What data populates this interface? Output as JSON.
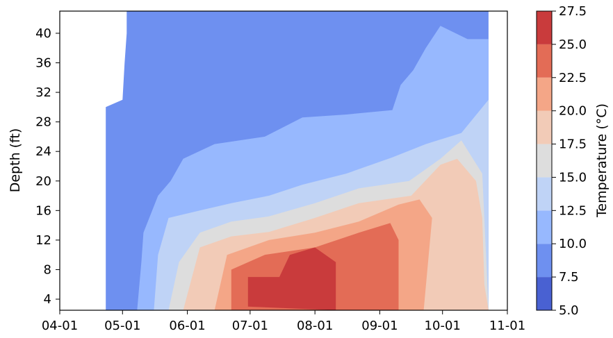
{
  "chart_data": {
    "type": "contourf",
    "title": "",
    "xlabel": "",
    "ylabel": "Depth (ft)",
    "x_ticks": [
      "04-01",
      "05-01",
      "06-01",
      "07-01",
      "08-01",
      "09-01",
      "10-01",
      "11-01"
    ],
    "y_ticks": [
      4,
      8,
      12,
      16,
      20,
      24,
      28,
      32,
      36,
      40
    ],
    "xlim": [
      "04-01",
      "11-01"
    ],
    "ylim": [
      43,
      2.5
    ],
    "y_inverted": true,
    "data_extent": {
      "x_start": "04-23",
      "x_end": "10-23",
      "depth_top": 2.5,
      "depth_bottom": 43
    },
    "colorbar": {
      "label": "Temperature (°C)",
      "levels": [
        5.0,
        7.5,
        10.0,
        12.5,
        15.0,
        17.5,
        20.0,
        22.5,
        25.0,
        27.5
      ],
      "tick_labels": [
        "5.0",
        "7.5",
        "10.0",
        "12.5",
        "15.0",
        "17.5",
        "20.0",
        "22.5",
        "25.0",
        "27.5"
      ],
      "colors": [
        "#4961d2",
        "#6e90f0",
        "#97b8fe",
        "#bfd3f6",
        "#dddddd",
        "#f2cbb7",
        "#f4a687",
        "#e36c56",
        "#c93b3c"
      ]
    },
    "isotherms": [
      {
        "level": 7.5,
        "points": [
          [
            "04-23",
            30
          ],
          [
            "05-01",
            31
          ],
          [
            "05-02",
            36
          ],
          [
            "05-03",
            40
          ],
          [
            "05-03",
            43
          ]
        ]
      },
      {
        "level": 10.0,
        "points": [
          [
            "05-08",
            2.5
          ],
          [
            "05-10",
            9
          ],
          [
            "05-11",
            13
          ],
          [
            "05-18",
            18
          ],
          [
            "05-24",
            20
          ],
          [
            "05-30",
            23
          ],
          [
            "06-14",
            25
          ],
          [
            "07-08",
            26
          ],
          [
            "07-26",
            28.6
          ],
          [
            "08-16",
            29
          ],
          [
            "09-07",
            29.6
          ],
          [
            "09-11",
            33
          ],
          [
            "09-17",
            35
          ],
          [
            "09-23",
            38
          ],
          [
            "09-30",
            41
          ],
          [
            "10-13",
            39.2
          ],
          [
            "10-23",
            39.2
          ]
        ]
      },
      {
        "level": 12.5,
        "points": [
          [
            "05-16",
            2.5
          ],
          [
            "05-18",
            10
          ],
          [
            "05-23",
            15
          ],
          [
            "06-07",
            16
          ],
          [
            "06-22",
            17
          ],
          [
            "07-10",
            18
          ],
          [
            "07-26",
            19.5
          ],
          [
            "08-16",
            21
          ],
          [
            "09-07",
            23.2
          ],
          [
            "09-23",
            25
          ],
          [
            "10-10",
            26.5
          ],
          [
            "10-23",
            31
          ]
        ]
      },
      {
        "level": 15.0,
        "points": [
          [
            "05-23",
            2.5
          ],
          [
            "05-28",
            9
          ],
          [
            "06-07",
            13
          ],
          [
            "06-22",
            14.5
          ],
          [
            "07-10",
            15.2
          ],
          [
            "08-01",
            17
          ],
          [
            "08-22",
            19
          ],
          [
            "09-15",
            20
          ],
          [
            "09-30",
            23
          ],
          [
            "10-10",
            25.5
          ],
          [
            "10-20",
            21
          ],
          [
            "10-23",
            2.5
          ]
        ]
      },
      {
        "level": 17.5,
        "points": [
          [
            "05-30",
            2.5
          ],
          [
            "06-07",
            11
          ],
          [
            "06-22",
            12.5
          ],
          [
            "07-10",
            13.1
          ],
          [
            "08-01",
            15
          ],
          [
            "08-22",
            17
          ],
          [
            "09-16",
            18
          ],
          [
            "09-30",
            22.2
          ],
          [
            "10-08",
            23
          ],
          [
            "10-17",
            20
          ],
          [
            "10-20",
            15
          ],
          [
            "10-21",
            6
          ],
          [
            "10-23",
            2.5
          ]
        ]
      },
      {
        "level": 20.0,
        "points": [
          [
            "06-14",
            2.5
          ],
          [
            "06-20",
            10
          ],
          [
            "07-10",
            12
          ],
          [
            "08-01",
            13
          ],
          [
            "08-22",
            14.5
          ],
          [
            "09-10",
            16.8
          ],
          [
            "09-20",
            17.5
          ],
          [
            "09-26",
            15
          ],
          [
            "09-22",
            2.5
          ]
        ]
      },
      {
        "level": 22.5,
        "points": [
          [
            "06-22",
            2.5
          ],
          [
            "06-22",
            8
          ],
          [
            "07-08",
            10
          ],
          [
            "08-01",
            11
          ],
          [
            "08-22",
            13
          ],
          [
            "09-06",
            14.3
          ],
          [
            "09-10",
            12
          ],
          [
            "09-10",
            2.5
          ]
        ]
      },
      {
        "level": 25.0,
        "points": [
          [
            "06-30",
            3
          ],
          [
            "06-30",
            7
          ],
          [
            "07-15",
            7
          ],
          [
            "07-20",
            10
          ],
          [
            "08-01",
            11
          ],
          [
            "08-11",
            9
          ],
          [
            "08-11",
            2.5
          ]
        ]
      }
    ]
  }
}
